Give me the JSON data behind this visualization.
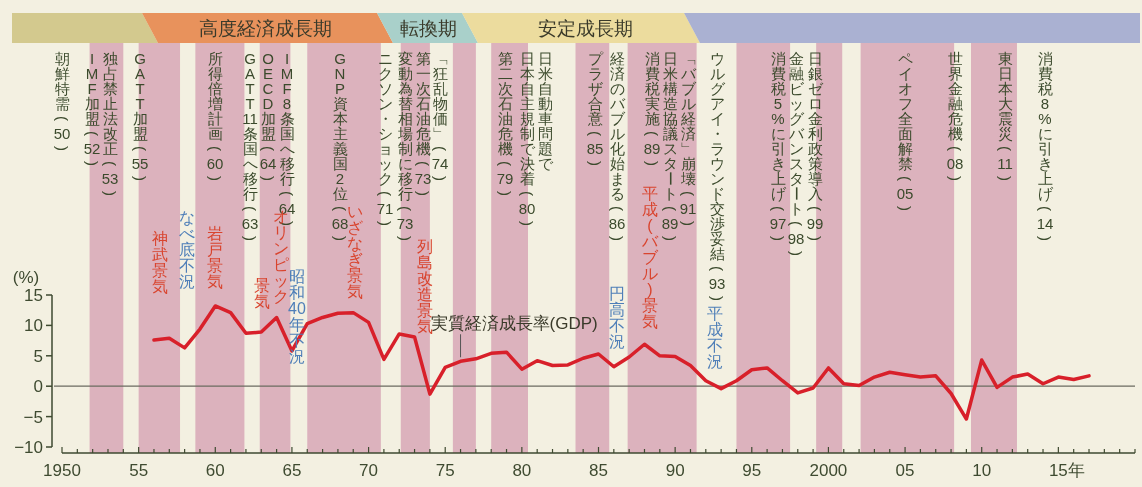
{
  "chart_data": {
    "type": "line",
    "ylabel": "(%)",
    "xlabel": "年",
    "x": [
      1956,
      1957,
      1958,
      1959,
      1960,
      1961,
      1962,
      1963,
      1964,
      1965,
      1966,
      1967,
      1968,
      1969,
      1970,
      1971,
      1972,
      1973,
      1974,
      1975,
      1976,
      1977,
      1978,
      1979,
      1980,
      1981,
      1982,
      1983,
      1984,
      1985,
      1986,
      1987,
      1988,
      1989,
      1990,
      1991,
      1992,
      1993,
      1994,
      1995,
      1996,
      1997,
      1998,
      1999,
      2000,
      2001,
      2002,
      2003,
      2004,
      2005,
      2006,
      2007,
      2008,
      2009,
      2010,
      2011,
      2012,
      2013,
      2014,
      2015,
      2016,
      2017
    ],
    "series": [
      {
        "name": "実質経済成長率(GDP)",
        "color": "#d8202a",
        "values": [
          7.6,
          7.9,
          6.3,
          9.4,
          13.2,
          12.1,
          8.7,
          8.9,
          11.3,
          5.8,
          10.3,
          11.3,
          12.0,
          12.1,
          10.5,
          4.4,
          8.6,
          8.1,
          -1.3,
          3.1,
          4.1,
          4.5,
          5.4,
          5.6,
          2.8,
          4.2,
          3.4,
          3.5,
          4.6,
          5.3,
          3.2,
          4.8,
          6.9,
          5.0,
          4.9,
          3.4,
          0.9,
          -0.4,
          0.9,
          2.7,
          3.0,
          0.9,
          -1.1,
          -0.3,
          3.0,
          0.4,
          0.1,
          1.5,
          2.3,
          1.9,
          1.5,
          1.7,
          -1.2,
          -5.4,
          4.3,
          -0.2,
          1.5,
          2.0,
          0.4,
          1.5,
          1.1,
          1.7
        ]
      }
    ],
    "xlim": [
      1950,
      2020
    ],
    "ylim": [
      -10,
      15
    ],
    "xticks": [
      {
        "value": 1950,
        "label": "1950"
      },
      {
        "value": 1951,
        "label": null
      },
      {
        "value": 1952,
        "label": null
      },
      {
        "value": 1953,
        "label": null
      },
      {
        "value": 1954,
        "label": null
      },
      {
        "value": 1955,
        "label": "55"
      },
      {
        "value": 1956,
        "label": null
      },
      {
        "value": 1957,
        "label": null
      },
      {
        "value": 1958,
        "label": null
      },
      {
        "value": 1959,
        "label": null
      },
      {
        "value": 1960,
        "label": "60"
      },
      {
        "value": 1961,
        "label": null
      },
      {
        "value": 1962,
        "label": null
      },
      {
        "value": 1963,
        "label": null
      },
      {
        "value": 1964,
        "label": null
      },
      {
        "value": 1965,
        "label": "65"
      },
      {
        "value": 1966,
        "label": null
      },
      {
        "value": 1967,
        "label": null
      },
      {
        "value": 1968,
        "label": null
      },
      {
        "value": 1969,
        "label": null
      },
      {
        "value": 1970,
        "label": "70"
      },
      {
        "value": 1971,
        "label": null
      },
      {
        "value": 1972,
        "label": null
      },
      {
        "value": 1973,
        "label": null
      },
      {
        "value": 1974,
        "label": null
      },
      {
        "value": 1975,
        "label": "75"
      },
      {
        "value": 1976,
        "label": null
      },
      {
        "value": 1977,
        "label": null
      },
      {
        "value": 1978,
        "label": null
      },
      {
        "value": 1979,
        "label": null
      },
      {
        "value": 1980,
        "label": "80"
      },
      {
        "value": 1981,
        "label": null
      },
      {
        "value": 1982,
        "label": null
      },
      {
        "value": 1983,
        "label": null
      },
      {
        "value": 1984,
        "label": null
      },
      {
        "value": 1985,
        "label": "85"
      },
      {
        "value": 1986,
        "label": null
      },
      {
        "value": 1987,
        "label": null
      },
      {
        "value": 1988,
        "label": null
      },
      {
        "value": 1989,
        "label": null
      },
      {
        "value": 1990,
        "label": "90"
      },
      {
        "value": 1991,
        "label": null
      },
      {
        "value": 1992,
        "label": null
      },
      {
        "value": 1993,
        "label": null
      },
      {
        "value": 1994,
        "label": null
      },
      {
        "value": 1995,
        "label": "95"
      },
      {
        "value": 1996,
        "label": null
      },
      {
        "value": 1997,
        "label": null
      },
      {
        "value": 1998,
        "label": null
      },
      {
        "value": 1999,
        "label": null
      },
      {
        "value": 2000,
        "label": "2000"
      },
      {
        "value": 2001,
        "label": null
      },
      {
        "value": 2002,
        "label": null
      },
      {
        "value": 2003,
        "label": null
      },
      {
        "value": 2004,
        "label": null
      },
      {
        "value": 2005,
        "label": "05"
      },
      {
        "value": 2006,
        "label": null
      },
      {
        "value": 2007,
        "label": null
      },
      {
        "value": 2008,
        "label": null
      },
      {
        "value": 2009,
        "label": null
      },
      {
        "value": 2010,
        "label": "10"
      },
      {
        "value": 2011,
        "label": null
      },
      {
        "value": 2012,
        "label": null
      },
      {
        "value": 2013,
        "label": null
      },
      {
        "value": 2014,
        "label": null
      },
      {
        "value": 2015,
        "label": "15"
      },
      {
        "value": 2016,
        "label": null
      },
      {
        "value": 2017,
        "label": null
      },
      {
        "value": 2018,
        "label": null
      },
      {
        "value": 2019,
        "label": null
      },
      {
        "value": 2020,
        "label": null
      }
    ],
    "yticks": [
      -10,
      -5,
      0,
      5,
      10,
      15
    ],
    "ref_lines": [
      {
        "axis": "y",
        "value": 0,
        "color": "#6b6b60"
      }
    ],
    "bands": [
      {
        "axis": "x",
        "from": 1951.8,
        "to": 1954.0,
        "color": "#dcb2bd"
      },
      {
        "axis": "x",
        "from": 1955.0,
        "to": 1957.7,
        "color": "#dcb2bd"
      },
      {
        "axis": "x",
        "from": 1958.7,
        "to": 1961.9,
        "color": "#dcb2bd"
      },
      {
        "axis": "x",
        "from": 1962.9,
        "to": 1964.9,
        "color": "#dcb2bd"
      },
      {
        "axis": "x",
        "from": 1966.0,
        "to": 1970.8,
        "color": "#dcb2bd"
      },
      {
        "axis": "x",
        "from": 1972.1,
        "to": 1974.0,
        "color": "#dcb2bd"
      },
      {
        "axis": "x",
        "from": 1975.5,
        "to": 1977.0,
        "color": "#dcb2bd"
      },
      {
        "axis": "x",
        "from": 1978.0,
        "to": 1980.4,
        "color": "#dcb2bd"
      },
      {
        "axis": "x",
        "from": 1983.5,
        "to": 1985.7,
        "color": "#dcb2bd"
      },
      {
        "axis": "x",
        "from": 1986.9,
        "to": 1991.4,
        "color": "#dcb2bd"
      },
      {
        "axis": "x",
        "from": 1994.0,
        "to": 1997.5,
        "color": "#dcb2bd"
      },
      {
        "axis": "x",
        "from": 1999.2,
        "to": 2000.9,
        "color": "#dcb2bd"
      },
      {
        "axis": "x",
        "from": 2002.1,
        "to": 2008.2,
        "color": "#dcb2bd"
      },
      {
        "axis": "x",
        "from": 2009.3,
        "to": 2012.3,
        "color": "#dcb2bd"
      }
    ],
    "annotations": [
      "高度経済成長期",
      "転換期",
      "安定成長期",
      "朝鮮特需(50)",
      "IMF加盟(52)",
      "独占禁止法改正(53)",
      "GATT加盟(55)",
      "所得倍増計画(60)",
      "GATT11条国へ移行(63)",
      "OECD加盟(64)",
      "IMF8条国へ移行(64)",
      "GNP資本主義国2位(68)",
      "ニクソン・ショック(71)",
      "変動為替相場制に移行(73)",
      "第一次石油危機(73)",
      "「狂乱物価」(74)",
      "第二次石油危機(79)",
      "日本自主規制で決着(80)",
      "日米自動車問題で",
      "プラザ合意(85)",
      "経済のバブル化始まる(86)",
      "消費税実施(89)",
      "日米構造協議スタート(89)",
      "「バブル経済」崩壊(91)",
      "ウルグアイ・ラウンド交渉妥結(93)",
      "消費税5%に引き上げ(97)",
      "金融ビッグバンスタート(98)",
      "日銀ゼロ金利政策導入(99)",
      "ペイオフ全面解禁(05)",
      "世界金融危機(08)",
      "東日本大震災(11)",
      "消費税8%に引き上げ(14)",
      "神武景気",
      "なべ底不況",
      "岩戸景気",
      "景気",
      "オリンピック",
      "昭和40年不況",
      "いざなぎ景気",
      "列島改造景気",
      "円高不況",
      "平成(バブル)景気",
      "平成不況"
    ]
  }
}
